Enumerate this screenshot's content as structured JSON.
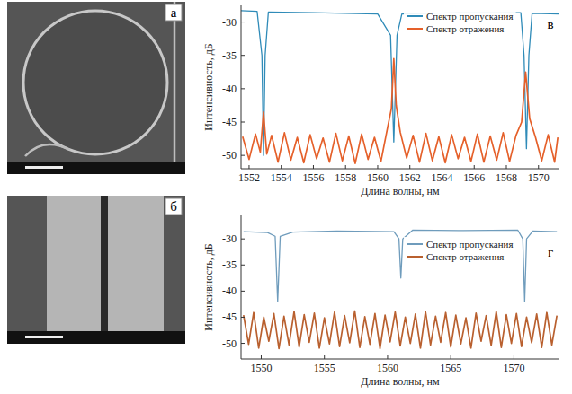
{
  "images": [
    {
      "label": "а"
    },
    {
      "label": "б"
    }
  ],
  "chart_data": [
    {
      "type": "line",
      "label": "в",
      "x_label": "Длина волны, нм",
      "y_label": "Интенсивность, дБ",
      "xlim": [
        1551.5,
        1571.3
      ],
      "xticks": [
        1552,
        1554,
        1556,
        1558,
        1560,
        1562,
        1564,
        1566,
        1568,
        1570
      ],
      "ylim": [
        -52,
        -27.5
      ],
      "yticks": [
        -30,
        -35,
        -40,
        -45,
        -50
      ],
      "grid": false,
      "legend": "top",
      "series": [
        {
          "name": "Спектр пропускания",
          "color": "#2f8bb8",
          "x": [
            1551.5,
            1552.5,
            1552.8,
            1552.9,
            1553.0,
            1553.2,
            1556,
            1560,
            1560.8,
            1561.0,
            1561.2,
            1561.5,
            1565,
            1568.9,
            1569.1,
            1569.25,
            1569.4,
            1569.6,
            1571.3
          ],
          "values": [
            -28.3,
            -28.4,
            -35,
            -50,
            -35,
            -28.5,
            -28.6,
            -28.8,
            -32,
            -48,
            -32,
            -28.8,
            -28.6,
            -28.6,
            -35,
            -49,
            -35,
            -28.7,
            -28.8
          ]
        },
        {
          "name": "Спектр отражения",
          "color": "#e5602a",
          "x": [
            1551.6,
            1552.0,
            1552.4,
            1552.7,
            1552.9,
            1553.1,
            1553.4,
            1553.8,
            1554.2,
            1554.6,
            1555.0,
            1555.4,
            1555.8,
            1556.2,
            1556.6,
            1557.0,
            1557.4,
            1557.8,
            1558.2,
            1558.6,
            1559.0,
            1559.4,
            1559.8,
            1560.2,
            1560.6,
            1560.85,
            1561.0,
            1561.15,
            1561.4,
            1561.8,
            1562.2,
            1562.6,
            1563.0,
            1563.4,
            1563.8,
            1564.2,
            1564.6,
            1565.0,
            1565.4,
            1565.8,
            1566.2,
            1566.6,
            1567.0,
            1567.4,
            1567.8,
            1568.2,
            1568.6,
            1568.95,
            1569.2,
            1569.45,
            1569.8,
            1570.2,
            1570.6,
            1571.0,
            1571.2
          ],
          "values": [
            -47.2,
            -50.6,
            -46.8,
            -49.5,
            -43.5,
            -49.8,
            -47.0,
            -51.0,
            -46.6,
            -50.7,
            -47.3,
            -51.1,
            -46.9,
            -50.5,
            -47.4,
            -51.0,
            -46.7,
            -50.8,
            -47.1,
            -51.2,
            -46.8,
            -50.6,
            -47.3,
            -50.9,
            -46.0,
            -43.0,
            -35.5,
            -42.5,
            -46.5,
            -50.4,
            -47.0,
            -51.0,
            -46.7,
            -50.8,
            -47.2,
            -51.1,
            -46.9,
            -50.5,
            -47.3,
            -50.9,
            -46.8,
            -51.0,
            -47.1,
            -50.7,
            -46.6,
            -50.9,
            -47.0,
            -45.0,
            -37.5,
            -44.5,
            -47.2,
            -50.8,
            -46.9,
            -51.0,
            -47.3
          ]
        }
      ]
    },
    {
      "type": "line",
      "label": "г",
      "x_label": "Длина волны, нм",
      "y_label": "Интенсивность, дБ",
      "xlim": [
        1548.4,
        1573.6
      ],
      "xticks": [
        1550,
        1555,
        1560,
        1565,
        1570
      ],
      "ylim": [
        -53,
        -25.5
      ],
      "yticks": [
        -30,
        -35,
        -40,
        -45,
        -50
      ],
      "grid": false,
      "legend": "top",
      "series": [
        {
          "name": "Спектр пропускания",
          "color": "#6f9cbc",
          "x": [
            1548.6,
            1550.5,
            1551.1,
            1551.3,
            1551.5,
            1552.5,
            1556,
            1560.5,
            1560.9,
            1561.05,
            1561.2,
            1562,
            1566,
            1570.3,
            1570.7,
            1570.85,
            1571.0,
            1571.5,
            1573.4
          ],
          "values": [
            -28.6,
            -28.8,
            -29.5,
            -42,
            -29.5,
            -28.7,
            -28.5,
            -28.6,
            -30,
            -37.5,
            -30,
            -28.3,
            -28.4,
            -28.3,
            -30,
            -42,
            -30,
            -28.5,
            -28.6
          ]
        },
        {
          "name": "Спектр отражения",
          "color": "#b9602f",
          "x": [
            1548.6,
            1549.0,
            1549.4,
            1549.8,
            1550.2,
            1550.6,
            1551.0,
            1551.4,
            1551.8,
            1552.2,
            1552.6,
            1553.0,
            1553.4,
            1553.8,
            1554.2,
            1554.6,
            1555.0,
            1555.4,
            1555.8,
            1556.2,
            1556.6,
            1557.0,
            1557.4,
            1557.8,
            1558.2,
            1558.6,
            1559.0,
            1559.4,
            1559.8,
            1560.2,
            1560.6,
            1561.0,
            1561.4,
            1561.8,
            1562.2,
            1562.6,
            1563.0,
            1563.4,
            1563.8,
            1564.2,
            1564.6,
            1565.0,
            1565.4,
            1565.8,
            1566.2,
            1566.6,
            1567.0,
            1567.4,
            1567.8,
            1568.2,
            1568.6,
            1569.0,
            1569.4,
            1569.8,
            1570.2,
            1570.6,
            1571.0,
            1571.4,
            1571.8,
            1572.2,
            1572.6,
            1573.0,
            1573.4
          ],
          "values": [
            -44.6,
            -50.2,
            -44.1,
            -50.9,
            -45.0,
            -49.6,
            -44.3,
            -51.0,
            -44.8,
            -50.3,
            -43.9,
            -50.7,
            -44.5,
            -49.8,
            -44.2,
            -50.9,
            -45.1,
            -50.1,
            -44.0,
            -50.6,
            -44.7,
            -49.9,
            -43.8,
            -50.8,
            -44.9,
            -50.2,
            -44.3,
            -51.0,
            -44.6,
            -49.7,
            -44.0,
            -50.5,
            -45.0,
            -50.0,
            -44.4,
            -50.9,
            -43.9,
            -50.3,
            -44.8,
            -49.8,
            -44.1,
            -50.7,
            -44.6,
            -50.1,
            -45.1,
            -50.9,
            -44.2,
            -49.6,
            -44.7,
            -50.4,
            -43.9,
            -50.8,
            -44.5,
            -50.0,
            -44.3,
            -50.6,
            -45.0,
            -49.9,
            -44.4,
            -50.8,
            -44.1,
            -50.3,
            -44.7
          ]
        }
      ]
    }
  ]
}
